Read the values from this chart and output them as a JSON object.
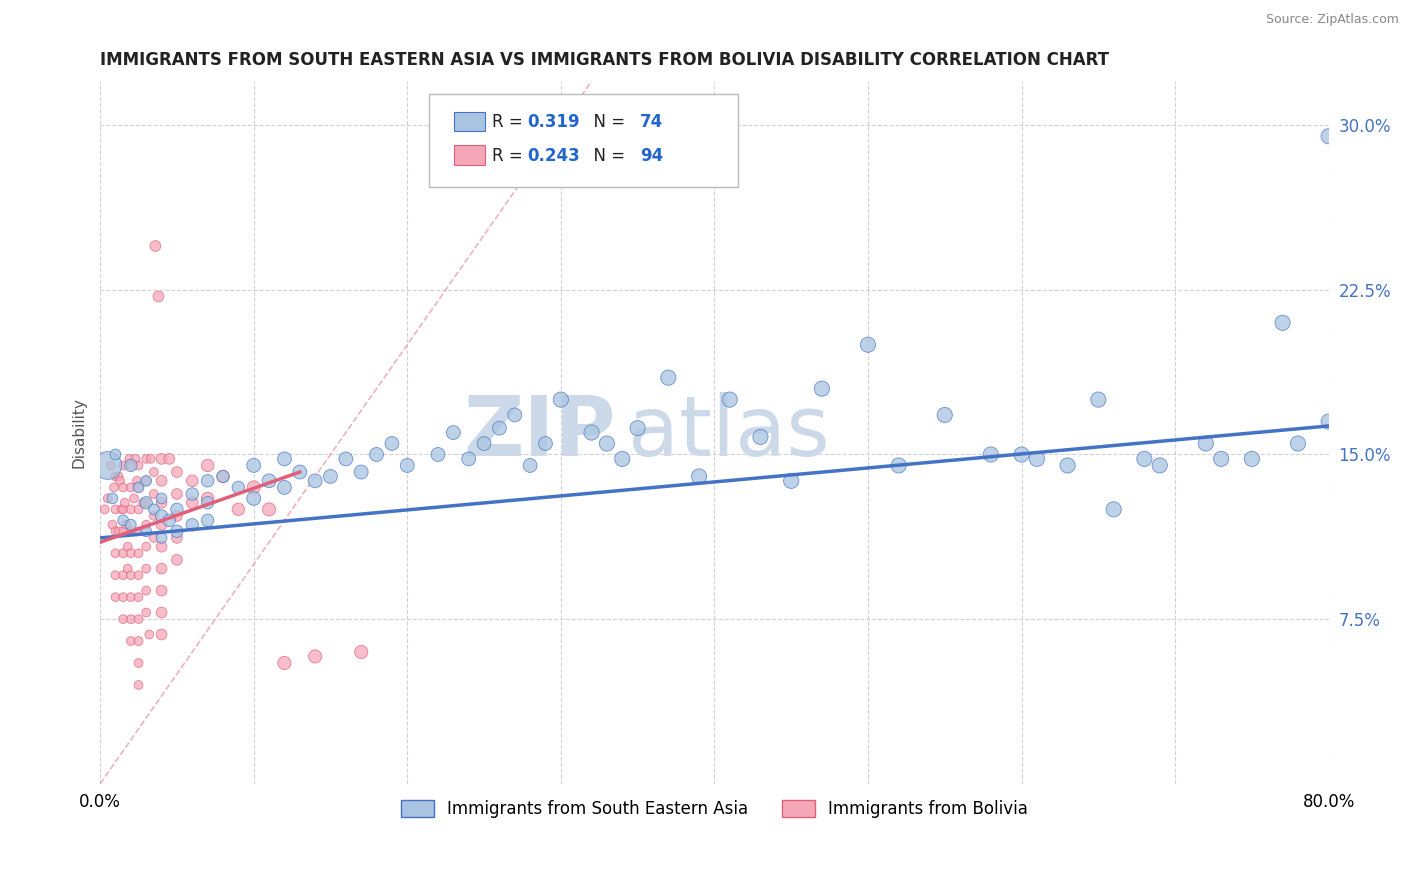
{
  "title": "IMMIGRANTS FROM SOUTH EASTERN ASIA VS IMMIGRANTS FROM BOLIVIA DISABILITY CORRELATION CHART",
  "source": "Source: ZipAtlas.com",
  "ylabel": "Disability",
  "xlim": [
    0.0,
    0.8
  ],
  "ylim": [
    0.0,
    0.32
  ],
  "xticks": [
    0.0,
    0.1,
    0.2,
    0.3,
    0.4,
    0.5,
    0.6,
    0.7,
    0.8
  ],
  "yticks": [
    0.0,
    0.075,
    0.15,
    0.225,
    0.3
  ],
  "series1_name": "Immigrants from South Eastern Asia",
  "series1_color": "#a8c4e0",
  "series1_edge_color": "#4472c4",
  "series1_line_color": "#4472c4",
  "series2_name": "Immigrants from Bolivia",
  "series2_color": "#f4a7b9",
  "series2_edge_color": "#e0607a",
  "series2_line_color": "#e0607a",
  "legend_R_color": "#2266cc",
  "background_color": "#ffffff",
  "watermark_color": "#ccd9e8",
  "grid_color": "#cccccc",
  "series1_x": [
    0.005,
    0.008,
    0.01,
    0.015,
    0.02,
    0.02,
    0.025,
    0.03,
    0.03,
    0.03,
    0.035,
    0.04,
    0.04,
    0.04,
    0.045,
    0.05,
    0.05,
    0.06,
    0.06,
    0.07,
    0.07,
    0.07,
    0.08,
    0.09,
    0.1,
    0.1,
    0.11,
    0.12,
    0.12,
    0.13,
    0.14,
    0.15,
    0.16,
    0.17,
    0.18,
    0.19,
    0.2,
    0.22,
    0.23,
    0.24,
    0.25,
    0.26,
    0.27,
    0.28,
    0.29,
    0.3,
    0.32,
    0.33,
    0.34,
    0.35,
    0.37,
    0.39,
    0.41,
    0.43,
    0.45,
    0.47,
    0.5,
    0.52,
    0.55,
    0.58,
    0.61,
    0.65,
    0.68,
    0.72,
    0.75,
    0.78,
    0.8,
    0.8,
    0.77,
    0.73,
    0.69,
    0.66,
    0.63,
    0.6
  ],
  "series1_y": [
    0.145,
    0.13,
    0.15,
    0.12,
    0.145,
    0.118,
    0.135,
    0.128,
    0.138,
    0.115,
    0.125,
    0.122,
    0.13,
    0.112,
    0.12,
    0.115,
    0.125,
    0.118,
    0.132,
    0.128,
    0.12,
    0.138,
    0.14,
    0.135,
    0.13,
    0.145,
    0.138,
    0.135,
    0.148,
    0.142,
    0.138,
    0.14,
    0.148,
    0.142,
    0.15,
    0.155,
    0.145,
    0.15,
    0.16,
    0.148,
    0.155,
    0.162,
    0.168,
    0.145,
    0.155,
    0.175,
    0.16,
    0.155,
    0.148,
    0.162,
    0.185,
    0.14,
    0.175,
    0.158,
    0.138,
    0.18,
    0.2,
    0.145,
    0.168,
    0.15,
    0.148,
    0.175,
    0.148,
    0.155,
    0.148,
    0.155,
    0.165,
    0.295,
    0.21,
    0.148,
    0.145,
    0.125,
    0.145,
    0.15
  ],
  "series1_sizes": [
    400,
    60,
    60,
    60,
    80,
    60,
    60,
    80,
    60,
    60,
    60,
    80,
    60,
    60,
    80,
    80,
    80,
    80,
    80,
    80,
    80,
    80,
    80,
    80,
    100,
    100,
    100,
    100,
    100,
    100,
    100,
    100,
    100,
    100,
    100,
    100,
    100,
    100,
    100,
    100,
    100,
    100,
    100,
    100,
    100,
    120,
    120,
    120,
    120,
    120,
    120,
    120,
    120,
    120,
    120,
    120,
    120,
    120,
    120,
    120,
    120,
    120,
    120,
    120,
    120,
    120,
    120,
    120,
    120,
    120,
    120,
    120,
    120,
    120
  ],
  "series2_x": [
    0.003,
    0.005,
    0.007,
    0.008,
    0.009,
    0.01,
    0.01,
    0.01,
    0.01,
    0.01,
    0.01,
    0.012,
    0.012,
    0.013,
    0.014,
    0.015,
    0.015,
    0.015,
    0.015,
    0.015,
    0.015,
    0.015,
    0.015,
    0.016,
    0.017,
    0.018,
    0.018,
    0.019,
    0.02,
    0.02,
    0.02,
    0.02,
    0.02,
    0.02,
    0.02,
    0.02,
    0.02,
    0.022,
    0.023,
    0.024,
    0.025,
    0.025,
    0.025,
    0.025,
    0.025,
    0.025,
    0.025,
    0.025,
    0.025,
    0.025,
    0.025,
    0.028,
    0.03,
    0.03,
    0.03,
    0.03,
    0.03,
    0.03,
    0.03,
    0.03,
    0.032,
    0.033,
    0.035,
    0.035,
    0.035,
    0.035,
    0.036,
    0.038,
    0.04,
    0.04,
    0.04,
    0.04,
    0.04,
    0.04,
    0.04,
    0.04,
    0.04,
    0.045,
    0.05,
    0.05,
    0.05,
    0.05,
    0.05,
    0.06,
    0.06,
    0.07,
    0.07,
    0.08,
    0.09,
    0.1,
    0.11,
    0.12,
    0.14,
    0.17
  ],
  "series2_y": [
    0.125,
    0.13,
    0.145,
    0.118,
    0.135,
    0.14,
    0.125,
    0.115,
    0.105,
    0.095,
    0.085,
    0.115,
    0.14,
    0.138,
    0.125,
    0.145,
    0.135,
    0.125,
    0.115,
    0.105,
    0.095,
    0.085,
    0.075,
    0.128,
    0.118,
    0.108,
    0.098,
    0.148,
    0.145,
    0.135,
    0.125,
    0.115,
    0.105,
    0.095,
    0.085,
    0.075,
    0.065,
    0.13,
    0.148,
    0.138,
    0.145,
    0.135,
    0.125,
    0.115,
    0.105,
    0.095,
    0.085,
    0.075,
    0.065,
    0.055,
    0.045,
    0.128,
    0.148,
    0.138,
    0.128,
    0.118,
    0.108,
    0.098,
    0.088,
    0.078,
    0.068,
    0.148,
    0.142,
    0.132,
    0.122,
    0.112,
    0.245,
    0.222,
    0.148,
    0.138,
    0.128,
    0.118,
    0.108,
    0.098,
    0.088,
    0.078,
    0.068,
    0.148,
    0.142,
    0.132,
    0.122,
    0.112,
    0.102,
    0.138,
    0.128,
    0.145,
    0.13,
    0.14,
    0.125,
    0.135,
    0.125,
    0.055,
    0.058,
    0.06
  ],
  "series2_sizes": [
    40,
    40,
    40,
    40,
    40,
    40,
    40,
    40,
    40,
    40,
    40,
    40,
    40,
    40,
    40,
    40,
    40,
    40,
    40,
    40,
    40,
    40,
    40,
    40,
    40,
    40,
    40,
    40,
    40,
    40,
    40,
    40,
    40,
    40,
    40,
    40,
    40,
    40,
    40,
    40,
    40,
    40,
    40,
    40,
    40,
    40,
    40,
    40,
    40,
    40,
    40,
    40,
    40,
    40,
    40,
    40,
    40,
    40,
    40,
    40,
    40,
    40,
    40,
    40,
    40,
    40,
    60,
    60,
    60,
    60,
    60,
    60,
    60,
    60,
    60,
    60,
    60,
    60,
    60,
    60,
    60,
    60,
    60,
    70,
    70,
    80,
    80,
    80,
    80,
    90,
    90,
    90,
    90,
    90
  ]
}
